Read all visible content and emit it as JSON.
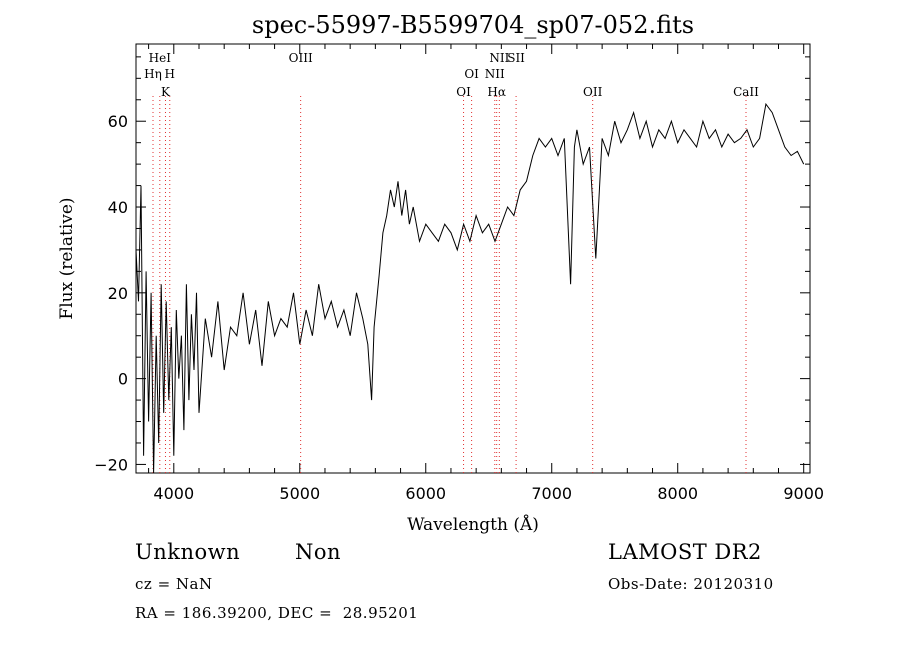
{
  "chart_data": {
    "type": "line",
    "title": "spec-55997-B5599704_sp07-052.fits",
    "xlabel": "Wavelength (Å)",
    "ylabel": "Flux (relative)",
    "xlim": [
      3700,
      9050
    ],
    "ylim": [
      -22,
      78
    ],
    "xticks": [
      4000,
      5000,
      6000,
      7000,
      8000,
      9000
    ],
    "yticks": [
      -20,
      0,
      20,
      40,
      60
    ],
    "grid": false,
    "legend": "none",
    "series": [
      {
        "values_note_units": "relative flux",
        "x": [
          3700,
          3720,
          3740,
          3760,
          3780,
          3800,
          3820,
          3840,
          3860,
          3880,
          3900,
          3920,
          3940,
          3960,
          3980,
          4000,
          4020,
          4040,
          4060,
          4080,
          4100,
          4120,
          4140,
          4160,
          4180,
          4200,
          4250,
          4300,
          4350,
          4400,
          4450,
          4500,
          4550,
          4600,
          4650,
          4700,
          4750,
          4800,
          4850,
          4900,
          4950,
          5000,
          5050,
          5100,
          5150,
          5200,
          5250,
          5300,
          5350,
          5400,
          5450,
          5500,
          5540,
          5570,
          5590,
          5610,
          5630,
          5660,
          5690,
          5720,
          5750,
          5780,
          5810,
          5840,
          5870,
          5900,
          5950,
          6000,
          6050,
          6100,
          6150,
          6200,
          6250,
          6300,
          6350,
          6400,
          6450,
          6500,
          6550,
          6600,
          6650,
          6700,
          6750,
          6800,
          6850,
          6900,
          6950,
          7000,
          7050,
          7100,
          7150,
          7180,
          7200,
          7250,
          7300,
          7350,
          7400,
          7450,
          7500,
          7550,
          7600,
          7650,
          7700,
          7750,
          7800,
          7850,
          7900,
          7950,
          8000,
          8050,
          8100,
          8150,
          8200,
          8250,
          8300,
          8350,
          8400,
          8450,
          8500,
          8550,
          8600,
          8650,
          8700,
          8750,
          8800,
          8850,
          8900,
          8950,
          9000
        ],
        "y": [
          30,
          18,
          45,
          -18,
          25,
          -10,
          20,
          -22,
          10,
          -15,
          22,
          -8,
          18,
          -5,
          12,
          -18,
          16,
          0,
          10,
          -12,
          22,
          -5,
          15,
          2,
          20,
          -8,
          14,
          5,
          18,
          2,
          12,
          10,
          20,
          8,
          16,
          3,
          18,
          10,
          14,
          12,
          20,
          8,
          16,
          10,
          22,
          14,
          18,
          12,
          16,
          10,
          20,
          14,
          8,
          -5,
          12,
          18,
          24,
          34,
          38,
          44,
          40,
          46,
          38,
          44,
          36,
          40,
          32,
          36,
          34,
          32,
          36,
          34,
          30,
          36,
          32,
          38,
          34,
          36,
          32,
          36,
          40,
          38,
          44,
          46,
          52,
          56,
          54,
          56,
          52,
          56,
          22,
          54,
          58,
          50,
          54,
          28,
          56,
          52,
          60,
          55,
          58,
          62,
          56,
          60,
          54,
          58,
          56,
          60,
          55,
          58,
          56,
          54,
          60,
          56,
          58,
          54,
          57,
          55,
          56,
          58,
          54,
          56,
          64,
          62,
          58,
          54,
          52,
          53,
          50
        ]
      }
    ],
    "line_markers": [
      {
        "label": "HeI",
        "x": 3889,
        "tier": 0
      },
      {
        "label": "Hη",
        "x": 3835,
        "tier": 1
      },
      {
        "label": "H",
        "x": 3968,
        "tier": 1
      },
      {
        "label": "K",
        "x": 3934,
        "tier": 2
      },
      {
        "label": "OIII",
        "x": 5007,
        "tier": 0
      },
      {
        "label": "OI",
        "x": 6364,
        "tier": 1
      },
      {
        "label": "OI",
        "x": 6300,
        "tier": 2
      },
      {
        "label": "NII",
        "x": 6584,
        "tier": 0
      },
      {
        "label": "SII",
        "x": 6717,
        "tier": 0
      },
      {
        "label": "NII",
        "x": 6548,
        "tier": 1
      },
      {
        "label": "Hα",
        "x": 6563,
        "tier": 2
      },
      {
        "label": "OII",
        "x": 7325,
        "tier": 2
      },
      {
        "label": "CaII",
        "x": 8542,
        "tier": 2
      }
    ]
  },
  "info": {
    "class_label": "Unknown",
    "subclass_label": "Non",
    "survey": "LAMOST DR2",
    "cz": "cz = NaN",
    "obs_date": "Obs-Date: 20120310",
    "coords": "RA = 186.39200, DEC =  28.95201"
  }
}
